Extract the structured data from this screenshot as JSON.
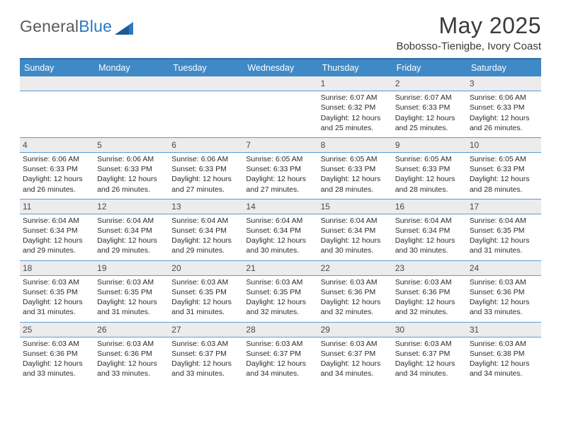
{
  "logo": {
    "text1": "General",
    "text2": "Blue"
  },
  "title": "May 2025",
  "subtitle": "Bobosso-Tienigbe, Ivory Coast",
  "colors": {
    "header_bg": "#3f89c6",
    "header_border": "#2d6ea7",
    "row_rule": "#5b9bd5",
    "daynum_bg": "#ececec"
  },
  "day_headers": [
    "Sunday",
    "Monday",
    "Tuesday",
    "Wednesday",
    "Thursday",
    "Friday",
    "Saturday"
  ],
  "weeks": [
    [
      null,
      null,
      null,
      null,
      {
        "n": "1",
        "sunrise": "Sunrise: 6:07 AM",
        "sunset": "Sunset: 6:32 PM",
        "daylight1": "Daylight: 12 hours",
        "daylight2": "and 25 minutes."
      },
      {
        "n": "2",
        "sunrise": "Sunrise: 6:07 AM",
        "sunset": "Sunset: 6:33 PM",
        "daylight1": "Daylight: 12 hours",
        "daylight2": "and 25 minutes."
      },
      {
        "n": "3",
        "sunrise": "Sunrise: 6:06 AM",
        "sunset": "Sunset: 6:33 PM",
        "daylight1": "Daylight: 12 hours",
        "daylight2": "and 26 minutes."
      }
    ],
    [
      {
        "n": "4",
        "sunrise": "Sunrise: 6:06 AM",
        "sunset": "Sunset: 6:33 PM",
        "daylight1": "Daylight: 12 hours",
        "daylight2": "and 26 minutes."
      },
      {
        "n": "5",
        "sunrise": "Sunrise: 6:06 AM",
        "sunset": "Sunset: 6:33 PM",
        "daylight1": "Daylight: 12 hours",
        "daylight2": "and 26 minutes."
      },
      {
        "n": "6",
        "sunrise": "Sunrise: 6:06 AM",
        "sunset": "Sunset: 6:33 PM",
        "daylight1": "Daylight: 12 hours",
        "daylight2": "and 27 minutes."
      },
      {
        "n": "7",
        "sunrise": "Sunrise: 6:05 AM",
        "sunset": "Sunset: 6:33 PM",
        "daylight1": "Daylight: 12 hours",
        "daylight2": "and 27 minutes."
      },
      {
        "n": "8",
        "sunrise": "Sunrise: 6:05 AM",
        "sunset": "Sunset: 6:33 PM",
        "daylight1": "Daylight: 12 hours",
        "daylight2": "and 28 minutes."
      },
      {
        "n": "9",
        "sunrise": "Sunrise: 6:05 AM",
        "sunset": "Sunset: 6:33 PM",
        "daylight1": "Daylight: 12 hours",
        "daylight2": "and 28 minutes."
      },
      {
        "n": "10",
        "sunrise": "Sunrise: 6:05 AM",
        "sunset": "Sunset: 6:33 PM",
        "daylight1": "Daylight: 12 hours",
        "daylight2": "and 28 minutes."
      }
    ],
    [
      {
        "n": "11",
        "sunrise": "Sunrise: 6:04 AM",
        "sunset": "Sunset: 6:34 PM",
        "daylight1": "Daylight: 12 hours",
        "daylight2": "and 29 minutes."
      },
      {
        "n": "12",
        "sunrise": "Sunrise: 6:04 AM",
        "sunset": "Sunset: 6:34 PM",
        "daylight1": "Daylight: 12 hours",
        "daylight2": "and 29 minutes."
      },
      {
        "n": "13",
        "sunrise": "Sunrise: 6:04 AM",
        "sunset": "Sunset: 6:34 PM",
        "daylight1": "Daylight: 12 hours",
        "daylight2": "and 29 minutes."
      },
      {
        "n": "14",
        "sunrise": "Sunrise: 6:04 AM",
        "sunset": "Sunset: 6:34 PM",
        "daylight1": "Daylight: 12 hours",
        "daylight2": "and 30 minutes."
      },
      {
        "n": "15",
        "sunrise": "Sunrise: 6:04 AM",
        "sunset": "Sunset: 6:34 PM",
        "daylight1": "Daylight: 12 hours",
        "daylight2": "and 30 minutes."
      },
      {
        "n": "16",
        "sunrise": "Sunrise: 6:04 AM",
        "sunset": "Sunset: 6:34 PM",
        "daylight1": "Daylight: 12 hours",
        "daylight2": "and 30 minutes."
      },
      {
        "n": "17",
        "sunrise": "Sunrise: 6:04 AM",
        "sunset": "Sunset: 6:35 PM",
        "daylight1": "Daylight: 12 hours",
        "daylight2": "and 31 minutes."
      }
    ],
    [
      {
        "n": "18",
        "sunrise": "Sunrise: 6:03 AM",
        "sunset": "Sunset: 6:35 PM",
        "daylight1": "Daylight: 12 hours",
        "daylight2": "and 31 minutes."
      },
      {
        "n": "19",
        "sunrise": "Sunrise: 6:03 AM",
        "sunset": "Sunset: 6:35 PM",
        "daylight1": "Daylight: 12 hours",
        "daylight2": "and 31 minutes."
      },
      {
        "n": "20",
        "sunrise": "Sunrise: 6:03 AM",
        "sunset": "Sunset: 6:35 PM",
        "daylight1": "Daylight: 12 hours",
        "daylight2": "and 31 minutes."
      },
      {
        "n": "21",
        "sunrise": "Sunrise: 6:03 AM",
        "sunset": "Sunset: 6:35 PM",
        "daylight1": "Daylight: 12 hours",
        "daylight2": "and 32 minutes."
      },
      {
        "n": "22",
        "sunrise": "Sunrise: 6:03 AM",
        "sunset": "Sunset: 6:36 PM",
        "daylight1": "Daylight: 12 hours",
        "daylight2": "and 32 minutes."
      },
      {
        "n": "23",
        "sunrise": "Sunrise: 6:03 AM",
        "sunset": "Sunset: 6:36 PM",
        "daylight1": "Daylight: 12 hours",
        "daylight2": "and 32 minutes."
      },
      {
        "n": "24",
        "sunrise": "Sunrise: 6:03 AM",
        "sunset": "Sunset: 6:36 PM",
        "daylight1": "Daylight: 12 hours",
        "daylight2": "and 33 minutes."
      }
    ],
    [
      {
        "n": "25",
        "sunrise": "Sunrise: 6:03 AM",
        "sunset": "Sunset: 6:36 PM",
        "daylight1": "Daylight: 12 hours",
        "daylight2": "and 33 minutes."
      },
      {
        "n": "26",
        "sunrise": "Sunrise: 6:03 AM",
        "sunset": "Sunset: 6:36 PM",
        "daylight1": "Daylight: 12 hours",
        "daylight2": "and 33 minutes."
      },
      {
        "n": "27",
        "sunrise": "Sunrise: 6:03 AM",
        "sunset": "Sunset: 6:37 PM",
        "daylight1": "Daylight: 12 hours",
        "daylight2": "and 33 minutes."
      },
      {
        "n": "28",
        "sunrise": "Sunrise: 6:03 AM",
        "sunset": "Sunset: 6:37 PM",
        "daylight1": "Daylight: 12 hours",
        "daylight2": "and 34 minutes."
      },
      {
        "n": "29",
        "sunrise": "Sunrise: 6:03 AM",
        "sunset": "Sunset: 6:37 PM",
        "daylight1": "Daylight: 12 hours",
        "daylight2": "and 34 minutes."
      },
      {
        "n": "30",
        "sunrise": "Sunrise: 6:03 AM",
        "sunset": "Sunset: 6:37 PM",
        "daylight1": "Daylight: 12 hours",
        "daylight2": "and 34 minutes."
      },
      {
        "n": "31",
        "sunrise": "Sunrise: 6:03 AM",
        "sunset": "Sunset: 6:38 PM",
        "daylight1": "Daylight: 12 hours",
        "daylight2": "and 34 minutes."
      }
    ]
  ]
}
